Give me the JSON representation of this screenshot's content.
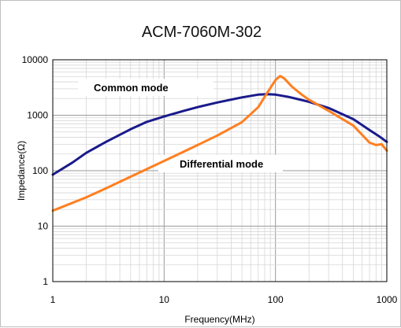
{
  "chart_data": {
    "type": "line",
    "title": "ACM-7060M-302",
    "xlabel": "Frequency(MHz)",
    "ylabel": "Impedance(Ω)",
    "xscale": "log",
    "yscale": "log",
    "xlim": [
      1,
      1000
    ],
    "ylim": [
      1,
      10000
    ],
    "x_ticks": [
      "1",
      "10",
      "100",
      "1000"
    ],
    "y_ticks": [
      "1",
      "10",
      "100",
      "1000",
      "10000"
    ],
    "grid": true,
    "legend": "none",
    "annotations": [
      {
        "text": "Common mode",
        "series": "common"
      },
      {
        "text": "Differential mode",
        "series": "differential"
      }
    ],
    "series": [
      {
        "key": "common",
        "color": "#1a1a8c",
        "points": [
          [
            1,
            85
          ],
          [
            1.5,
            140
          ],
          [
            2,
            210
          ],
          [
            3,
            330
          ],
          [
            5,
            560
          ],
          [
            7,
            760
          ],
          [
            10,
            950
          ],
          [
            15,
            1200
          ],
          [
            20,
            1400
          ],
          [
            30,
            1700
          ],
          [
            50,
            2100
          ],
          [
            70,
            2350
          ],
          [
            85,
            2400
          ],
          [
            100,
            2350
          ],
          [
            130,
            2150
          ],
          [
            200,
            1750
          ],
          [
            300,
            1350
          ],
          [
            500,
            850
          ],
          [
            700,
            540
          ],
          [
            850,
            420
          ],
          [
            1000,
            330
          ]
        ]
      },
      {
        "key": "differential",
        "color": "#ff7f1f",
        "points": [
          [
            1,
            19
          ],
          [
            2,
            33
          ],
          [
            3,
            48
          ],
          [
            5,
            78
          ],
          [
            10,
            150
          ],
          [
            20,
            290
          ],
          [
            30,
            430
          ],
          [
            50,
            750
          ],
          [
            70,
            1400
          ],
          [
            85,
            2600
          ],
          [
            100,
            4300
          ],
          [
            110,
            5100
          ],
          [
            120,
            4600
          ],
          [
            140,
            3300
          ],
          [
            170,
            2400
          ],
          [
            200,
            1900
          ],
          [
            300,
            1200
          ],
          [
            500,
            650
          ],
          [
            700,
            320
          ],
          [
            800,
            290
          ],
          [
            900,
            300
          ],
          [
            1000,
            230
          ]
        ]
      }
    ]
  }
}
